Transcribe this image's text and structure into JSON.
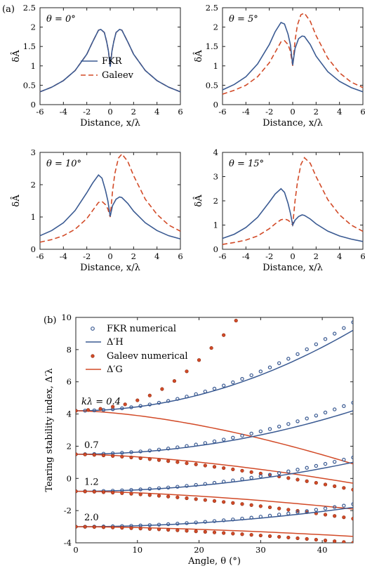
{
  "panel_labels": {
    "a": "(a)",
    "b": "(b)"
  },
  "colors": {
    "fkr": "#3a5a92",
    "galeev": "#d24a27"
  },
  "chart_data": [
    {
      "type": "line",
      "panel": "a",
      "inset": "θ = 0°",
      "xlabel": "Distance, x/λ",
      "ylabel": "δÂ",
      "xlim": [
        -6,
        6
      ],
      "ylim": [
        0,
        2.5
      ],
      "xticks": [
        "-6",
        "-4",
        "-2",
        "0",
        "2",
        "4",
        "6"
      ],
      "yticks": [
        "0",
        "0.5",
        "1",
        "1.5",
        "2",
        "2.5"
      ],
      "legend": [
        "FKR",
        "Galeev"
      ],
      "series": [
        {
          "name": "FKR",
          "style": "solid",
          "x": [
            -6,
            -5,
            -4,
            -3,
            -2,
            -1.5,
            -1,
            -0.8,
            -0.5,
            -0.3,
            -0.15,
            0,
            0.15,
            0.3,
            0.5,
            0.8,
            1,
            1.5,
            2,
            3,
            4,
            5,
            6
          ],
          "y": [
            0.33,
            0.45,
            0.62,
            0.88,
            1.3,
            1.62,
            1.92,
            1.94,
            1.86,
            1.62,
            1.38,
            0.98,
            1.38,
            1.62,
            1.86,
            1.94,
            1.92,
            1.62,
            1.3,
            0.88,
            0.62,
            0.45,
            0.33
          ]
        },
        {
          "name": "Galeev",
          "style": "dashed",
          "x": [
            -6,
            -5,
            -4,
            -3,
            -2,
            -1.5,
            -1,
            -0.8,
            -0.5,
            -0.3,
            -0.15,
            0,
            0.15,
            0.3,
            0.5,
            0.8,
            1,
            1.5,
            2,
            3,
            4,
            5,
            6
          ],
          "y": [
            0.33,
            0.45,
            0.62,
            0.88,
            1.3,
            1.62,
            1.92,
            1.94,
            1.86,
            1.62,
            1.38,
            0.98,
            1.38,
            1.62,
            1.86,
            1.94,
            1.92,
            1.62,
            1.3,
            0.88,
            0.62,
            0.45,
            0.33
          ]
        }
      ]
    },
    {
      "type": "line",
      "panel": "a",
      "inset": "θ = 5°",
      "xlabel": "Distance, x/λ",
      "ylabel": "δÂ",
      "xlim": [
        -6,
        6
      ],
      "ylim": [
        0,
        2.5
      ],
      "xticks": [
        "-6",
        "-4",
        "-2",
        "0",
        "2",
        "4",
        "6"
      ],
      "yticks": [
        "0",
        "0.5",
        "1",
        "1.5",
        "2",
        "2.5"
      ],
      "series": [
        {
          "name": "FKR",
          "style": "solid",
          "x": [
            -6,
            -5,
            -4,
            -3,
            -2,
            -1.5,
            -1,
            -0.7,
            -0.4,
            -0.2,
            0,
            0.2,
            0.5,
            0.8,
            1,
            1.5,
            2,
            3,
            4,
            5,
            6
          ],
          "y": [
            0.38,
            0.52,
            0.72,
            1.05,
            1.55,
            1.88,
            2.12,
            2.08,
            1.82,
            1.55,
            1.02,
            1.45,
            1.7,
            1.77,
            1.76,
            1.55,
            1.25,
            0.85,
            0.6,
            0.44,
            0.33
          ]
        },
        {
          "name": "Galeev",
          "style": "dashed",
          "x": [
            -6,
            -5,
            -4,
            -3,
            -2,
            -1.5,
            -1,
            -0.7,
            -0.4,
            -0.2,
            0,
            0.2,
            0.4,
            0.7,
            1,
            1.5,
            2,
            3,
            4,
            5,
            6
          ],
          "y": [
            0.27,
            0.37,
            0.5,
            0.72,
            1.08,
            1.35,
            1.62,
            1.65,
            1.55,
            1.38,
            1.0,
            1.65,
            2.05,
            2.32,
            2.36,
            2.15,
            1.78,
            1.2,
            0.82,
            0.58,
            0.44
          ]
        }
      ]
    },
    {
      "type": "line",
      "panel": "a",
      "inset": "θ = 10°",
      "xlabel": "Distance, x/λ",
      "ylabel": "δÂ",
      "xlim": [
        -6,
        6
      ],
      "ylim": [
        0,
        3
      ],
      "xticks": [
        "-6",
        "-4",
        "-2",
        "0",
        "2",
        "4",
        "6"
      ],
      "yticks": [
        "0",
        "1",
        "2",
        "3"
      ],
      "series": [
        {
          "name": "FKR",
          "style": "solid",
          "x": [
            -6,
            -5,
            -4,
            -3,
            -2,
            -1.5,
            -1,
            -0.7,
            -0.4,
            -0.2,
            0,
            0.2,
            0.5,
            0.8,
            1,
            1.5,
            2,
            3,
            4,
            5,
            6
          ],
          "y": [
            0.42,
            0.58,
            0.82,
            1.2,
            1.75,
            2.05,
            2.3,
            2.2,
            1.82,
            1.5,
            1.02,
            1.35,
            1.55,
            1.62,
            1.6,
            1.42,
            1.18,
            0.82,
            0.58,
            0.42,
            0.32
          ]
        },
        {
          "name": "Galeev",
          "style": "dashed",
          "x": [
            -6,
            -5,
            -4,
            -3,
            -2,
            -1.5,
            -1,
            -0.7,
            -0.4,
            -0.2,
            0,
            0.2,
            0.4,
            0.7,
            1,
            1.5,
            2,
            3,
            4,
            5,
            6
          ],
          "y": [
            0.22,
            0.3,
            0.42,
            0.62,
            0.95,
            1.2,
            1.45,
            1.48,
            1.38,
            1.25,
            1.0,
            1.8,
            2.35,
            2.82,
            2.95,
            2.72,
            2.28,
            1.55,
            1.08,
            0.75,
            0.56
          ]
        }
      ]
    },
    {
      "type": "line",
      "panel": "a",
      "inset": "θ = 15°",
      "xlabel": "Distance, x/λ",
      "ylabel": "δÂ",
      "xlim": [
        -6,
        6
      ],
      "ylim": [
        0,
        4
      ],
      "xticks": [
        "-6",
        "-4",
        "-2",
        "0",
        "2",
        "4",
        "6"
      ],
      "yticks": [
        "0",
        "1",
        "2",
        "3",
        "4"
      ],
      "series": [
        {
          "name": "FKR",
          "style": "solid",
          "x": [
            -6,
            -5,
            -4,
            -3,
            -2,
            -1.5,
            -1,
            -0.7,
            -0.4,
            -0.2,
            0,
            0.2,
            0.5,
            0.8,
            1,
            1.5,
            2,
            3,
            4,
            5,
            6
          ],
          "y": [
            0.45,
            0.62,
            0.9,
            1.32,
            1.95,
            2.28,
            2.5,
            2.35,
            1.9,
            1.5,
            1.0,
            1.2,
            1.35,
            1.42,
            1.4,
            1.25,
            1.05,
            0.75,
            0.55,
            0.42,
            0.32
          ]
        },
        {
          "name": "Galeev",
          "style": "dashed",
          "x": [
            -6,
            -5,
            -4,
            -3,
            -2,
            -1.5,
            -1,
            -0.7,
            -0.4,
            -0.2,
            0,
            0.2,
            0.4,
            0.7,
            1,
            1.5,
            2,
            3,
            4,
            5,
            6
          ],
          "y": [
            0.2,
            0.28,
            0.38,
            0.55,
            0.85,
            1.05,
            1.22,
            1.25,
            1.2,
            1.12,
            1.0,
            2.0,
            2.75,
            3.5,
            3.78,
            3.55,
            3.0,
            2.05,
            1.42,
            1.0,
            0.74
          ]
        }
      ]
    },
    {
      "type": "line",
      "panel": "b",
      "xlabel": "Angle, θ (°)",
      "ylabel": "Tearing stability index, Δ′λ",
      "xlim": [
        0,
        45
      ],
      "ylim": [
        -4,
        10
      ],
      "xticks": [
        "0",
        "10",
        "20",
        "30",
        "40"
      ],
      "yticks": [
        "-4",
        "-2",
        "0",
        "2",
        "4",
        "6",
        "8",
        "10"
      ],
      "legend": [
        "FKR numerical",
        "Δ′H",
        "Galeev numerical",
        "Δ′G"
      ],
      "annotations": [
        "kλ = 0.4",
        "0.7",
        "1.2",
        "2.0"
      ],
      "groups": [
        {
          "label": "kλ = 0.4",
          "fkr_base": 4.2,
          "fkr_end": 9.2,
          "fkr_num_end": 9.7,
          "gal_end": 0.9,
          "gal_num": {
            "x": [
              0,
              2,
              4,
              6,
              8,
              10,
              12,
              14,
              16,
              18,
              20,
              22,
              24,
              26
            ],
            "y": [
              4.2,
              4.25,
              4.32,
              4.45,
              4.6,
              4.85,
              5.15,
              5.55,
              6.05,
              6.65,
              7.35,
              8.1,
              8.9,
              9.8
            ]
          }
        },
        {
          "label": "0.7",
          "fkr_base": 1.5,
          "fkr_end": 4.2,
          "fkr_num_end": 4.7,
          "gal_end": -0.3,
          "gal_num_end": -0.7
        },
        {
          "label": "1.2",
          "fkr_base": -0.8,
          "fkr_end": 1.0,
          "fkr_num_end": 1.3,
          "gal_end": -1.9,
          "gal_num_end": -2.5
        },
        {
          "label": "2.0",
          "fkr_base": -3.0,
          "fkr_end": -1.8,
          "fkr_num_end": -1.6,
          "gal_end": -3.6,
          "gal_num_end": -4.0
        }
      ]
    }
  ]
}
